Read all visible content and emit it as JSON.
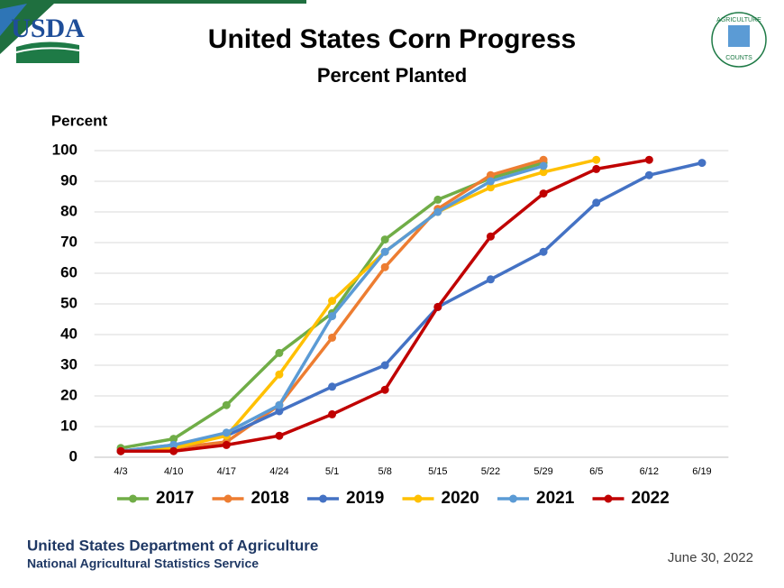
{
  "logo": "USDA",
  "seal": [
    "AGRICULTURE",
    "COUNTS"
  ],
  "chart_data": {
    "type": "line",
    "title": "United States Corn Progress",
    "subtitle": "Percent Planted",
    "y_label": "Percent",
    "categories": [
      "4/3",
      "4/10",
      "4/17",
      "4/24",
      "5/1",
      "5/8",
      "5/15",
      "5/22",
      "5/29",
      "6/5",
      "6/12",
      "6/19"
    ],
    "series": [
      {
        "name": "2017",
        "color": "#70ad47",
        "values": [
          3,
          6,
          17,
          34,
          47,
          71,
          84,
          91,
          96,
          null,
          null,
          null
        ]
      },
      {
        "name": "2018",
        "color": "#ed7d31",
        "values": [
          2,
          3,
          5,
          17,
          39,
          62,
          81,
          92,
          97,
          null,
          null,
          null
        ]
      },
      {
        "name": "2019",
        "color": "#4472c4",
        "values": [
          2,
          4,
          7,
          15,
          23,
          30,
          49,
          58,
          67,
          83,
          92,
          96
        ]
      },
      {
        "name": "2020",
        "color": "#ffc000",
        "values": [
          2,
          3,
          7,
          27,
          51,
          67,
          80,
          88,
          93,
          97,
          null,
          null
        ]
      },
      {
        "name": "2021",
        "color": "#5b9bd5",
        "values": [
          2,
          4,
          8,
          17,
          46,
          67,
          80,
          90,
          95,
          null,
          null,
          null
        ]
      },
      {
        "name": "2022",
        "color": "#c00000",
        "values": [
          2,
          2,
          4,
          7,
          14,
          22,
          49,
          72,
          86,
          94,
          97,
          null
        ]
      }
    ],
    "ylim": [
      0,
      100
    ],
    "yticks": [
      0,
      10,
      20,
      30,
      40,
      50,
      60,
      70,
      80,
      90,
      100
    ],
    "grid": true,
    "legend": "bottom"
  },
  "footer": {
    "agency": "United States Department of Agriculture",
    "service": "National Agricultural Statistics Service",
    "date": "June 30, 2022"
  }
}
